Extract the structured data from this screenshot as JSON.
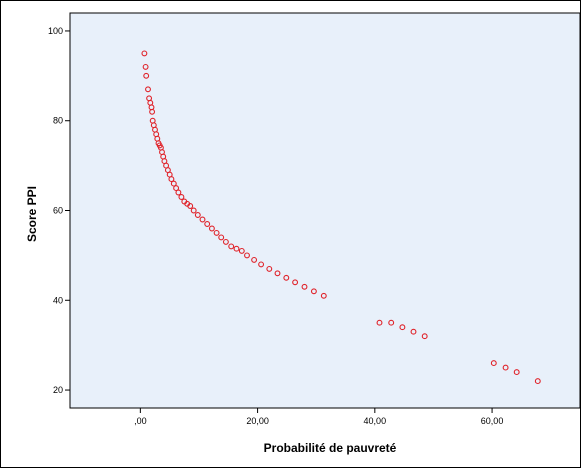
{
  "colors": {
    "plot_background": "#e8f0fa",
    "marker": "#e0232a",
    "axis": "#000000"
  },
  "chart_data": {
    "type": "scatter",
    "title": "",
    "xlabel": "Probabilité de pauvreté",
    "ylabel": "Score PPI",
    "xlim": [
      -12,
      75
    ],
    "ylim": [
      16,
      104
    ],
    "xticks": [
      0,
      20,
      40,
      60
    ],
    "xtick_labels": [
      ",00",
      "20,00",
      "40,00",
      "60,00"
    ],
    "yticks": [
      20,
      40,
      60,
      80,
      100
    ],
    "ytick_labels": [
      "20",
      "40",
      "60",
      "80",
      "100"
    ],
    "grid": false,
    "marker": "open-circle",
    "points": [
      {
        "x": 0.7,
        "y": 95
      },
      {
        "x": 0.9,
        "y": 92
      },
      {
        "x": 1.0,
        "y": 90
      },
      {
        "x": 1.3,
        "y": 87
      },
      {
        "x": 1.5,
        "y": 85
      },
      {
        "x": 1.7,
        "y": 84
      },
      {
        "x": 1.9,
        "y": 83
      },
      {
        "x": 2.0,
        "y": 82
      },
      {
        "x": 2.1,
        "y": 80
      },
      {
        "x": 2.3,
        "y": 79
      },
      {
        "x": 2.5,
        "y": 78
      },
      {
        "x": 2.7,
        "y": 77
      },
      {
        "x": 2.9,
        "y": 76
      },
      {
        "x": 3.1,
        "y": 75
      },
      {
        "x": 3.3,
        "y": 74.5
      },
      {
        "x": 3.5,
        "y": 74
      },
      {
        "x": 3.7,
        "y": 73
      },
      {
        "x": 3.9,
        "y": 72
      },
      {
        "x": 4.1,
        "y": 71
      },
      {
        "x": 4.4,
        "y": 70
      },
      {
        "x": 4.7,
        "y": 69
      },
      {
        "x": 5.0,
        "y": 68
      },
      {
        "x": 5.3,
        "y": 67
      },
      {
        "x": 5.7,
        "y": 66
      },
      {
        "x": 6.1,
        "y": 65
      },
      {
        "x": 6.5,
        "y": 64
      },
      {
        "x": 7.0,
        "y": 63
      },
      {
        "x": 7.5,
        "y": 62
      },
      {
        "x": 8.0,
        "y": 61.5
      },
      {
        "x": 8.5,
        "y": 61
      },
      {
        "x": 9.1,
        "y": 60
      },
      {
        "x": 9.8,
        "y": 59
      },
      {
        "x": 10.6,
        "y": 58
      },
      {
        "x": 11.4,
        "y": 57
      },
      {
        "x": 12.2,
        "y": 56
      },
      {
        "x": 13.0,
        "y": 55
      },
      {
        "x": 13.8,
        "y": 54
      },
      {
        "x": 14.6,
        "y": 53
      },
      {
        "x": 15.5,
        "y": 52
      },
      {
        "x": 16.4,
        "y": 51.5
      },
      {
        "x": 17.3,
        "y": 51
      },
      {
        "x": 18.2,
        "y": 50
      },
      {
        "x": 19.4,
        "y": 49
      },
      {
        "x": 20.6,
        "y": 48
      },
      {
        "x": 22.0,
        "y": 47
      },
      {
        "x": 23.4,
        "y": 46
      },
      {
        "x": 24.9,
        "y": 45
      },
      {
        "x": 26.4,
        "y": 44
      },
      {
        "x": 28.0,
        "y": 43
      },
      {
        "x": 29.6,
        "y": 42
      },
      {
        "x": 31.3,
        "y": 41
      },
      {
        "x": 40.8,
        "y": 35
      },
      {
        "x": 42.8,
        "y": 35
      },
      {
        "x": 44.7,
        "y": 34
      },
      {
        "x": 46.6,
        "y": 33
      },
      {
        "x": 48.5,
        "y": 32
      },
      {
        "x": 60.3,
        "y": 26
      },
      {
        "x": 62.3,
        "y": 25
      },
      {
        "x": 64.2,
        "y": 24
      },
      {
        "x": 67.8,
        "y": 22
      }
    ]
  }
}
